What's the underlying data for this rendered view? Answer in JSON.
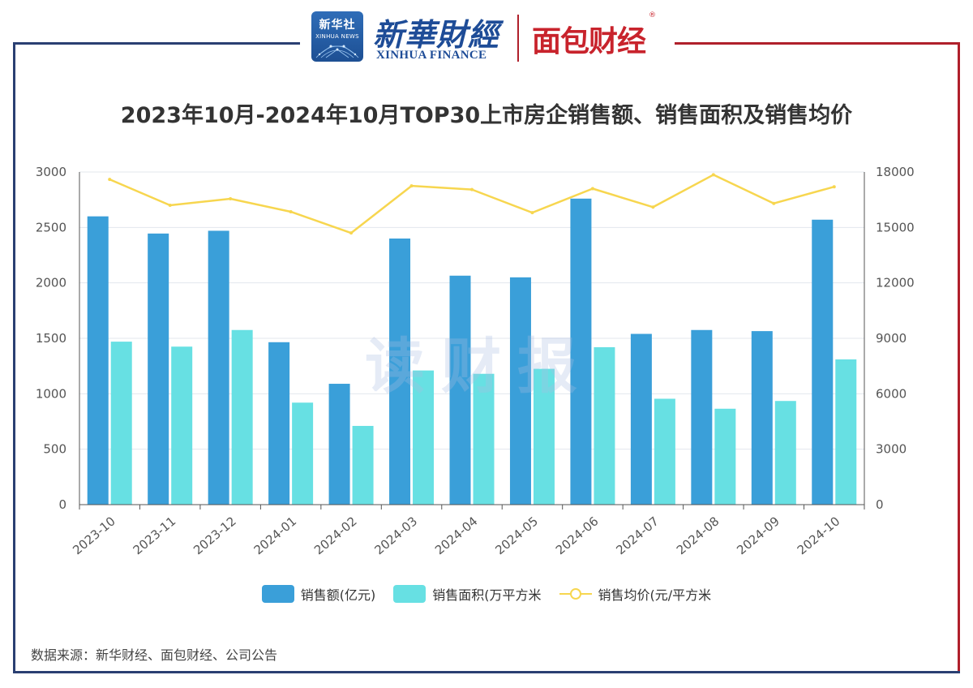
{
  "header": {
    "xinhua_badge_cn": "新华社",
    "xinhua_badge_en": "XINHUA NEWS",
    "finance_cn": "新華財經",
    "finance_en": "XINHUA FINANCE",
    "mianbao": "面包财经",
    "registered": "®"
  },
  "watermark": "读财报",
  "colors": {
    "sales_amount": "#3a9fd9",
    "sales_area": "#67e0e3",
    "avg_price": "#f7d64f",
    "frame_blue": "#2a3f72",
    "frame_red": "#b0202b"
  },
  "chart_data": {
    "type": "bar",
    "title": "2023年10月-2024年10月TOP30上市房企销售额、销售面积及销售均价",
    "categories": [
      "2023-10",
      "2023-11",
      "2023-12",
      "2024-01",
      "2024-02",
      "2024-03",
      "2024-04",
      "2024-05",
      "2024-06",
      "2024-07",
      "2024-08",
      "2024-09",
      "2024-10"
    ],
    "left_axis": {
      "ticks": [
        "0",
        "500",
        "1000",
        "1500",
        "2000",
        "2500",
        "3000"
      ],
      "ylim": [
        0,
        3000
      ]
    },
    "right_axis": {
      "ticks": [
        "0",
        "3000",
        "6000",
        "9000",
        "12000",
        "15000",
        "18000"
      ],
      "ylim": [
        0,
        18000
      ]
    },
    "series": [
      {
        "name": "销售额(亿元)",
        "type": "bar",
        "axis": "left",
        "values": [
          2600,
          2445,
          2470,
          1465,
          1090,
          2400,
          2065,
          2050,
          2760,
          1540,
          1575,
          1565,
          2570
        ]
      },
      {
        "name": "销售面积(万平方米",
        "type": "bar",
        "axis": "left",
        "values": [
          1470,
          1425,
          1575,
          920,
          710,
          1210,
          1180,
          1225,
          1420,
          955,
          865,
          935,
          1310
        ]
      },
      {
        "name": "销售均价(元/平方米",
        "type": "line",
        "axis": "right",
        "values": [
          17600,
          16200,
          16550,
          15850,
          14700,
          17250,
          17050,
          15800,
          17100,
          16100,
          17850,
          16300,
          17200
        ]
      }
    ],
    "legend_position": "bottom",
    "grid": true
  },
  "source_note": "数据来源：新华财经、面包财经、公司公告"
}
